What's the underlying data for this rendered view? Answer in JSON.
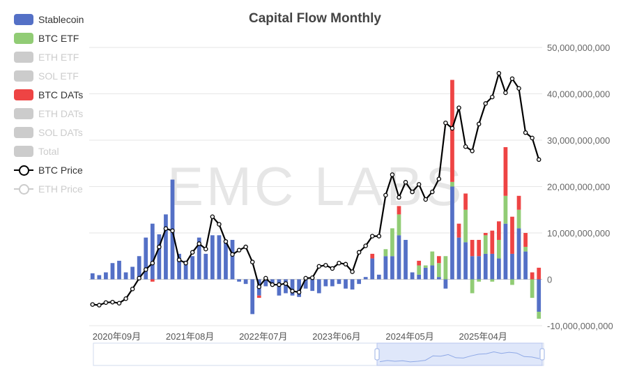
{
  "title": "Capital Flow Monthly",
  "watermark": "EMC LABS",
  "legend": [
    {
      "label": "Stablecoin",
      "color": "#5470c6",
      "kind": "bar",
      "active": true
    },
    {
      "label": "BTC ETF",
      "color": "#91cc75",
      "kind": "bar",
      "active": true
    },
    {
      "label": "ETH ETF",
      "color": "#cccccc",
      "kind": "bar",
      "active": false
    },
    {
      "label": "SOL ETF",
      "color": "#cccccc",
      "kind": "bar",
      "active": false
    },
    {
      "label": "BTC DATs",
      "color": "#ee4444",
      "kind": "bar",
      "active": true
    },
    {
      "label": "ETH DATs",
      "color": "#cccccc",
      "kind": "bar",
      "active": false
    },
    {
      "label": "SOL DATs",
      "color": "#cccccc",
      "kind": "bar",
      "active": false
    },
    {
      "label": "Total",
      "color": "#cccccc",
      "kind": "bar",
      "active": false
    },
    {
      "label": "BTC Price",
      "color": "#000000",
      "kind": "line",
      "active": true
    },
    {
      "label": "ETH Price",
      "color": "#cccccc",
      "kind": "line",
      "active": false
    }
  ],
  "chart_data": {
    "type": "bar",
    "title": "Capital Flow Monthly",
    "y_ticks": [
      "50,000,000,000",
      "40,000,000,000",
      "30,000,000,000",
      "20,000,000,000",
      "10,000,000,000",
      "0",
      "-10,000,000,000"
    ],
    "ylim": [
      -10000000000,
      50000000000
    ],
    "x_tick_labels": [
      "2020年09月",
      "2021年08月",
      "2022年07月",
      "2023年06月",
      "2024年05月",
      "2025年04月"
    ],
    "x_tick_index": [
      0,
      11,
      22,
      33,
      44,
      55
    ],
    "months": 68,
    "series": [
      {
        "name": "Stablecoin",
        "color": "#5470c6",
        "values": [
          1.3,
          0.9,
          1.5,
          3.5,
          4.0,
          1.5,
          2.7,
          5.0,
          9.0,
          12.0,
          9.7,
          14.0,
          21.5,
          5.5,
          4.0,
          5.0,
          9.0,
          5.5,
          9.5,
          9.5,
          8.5,
          8.5,
          -0.5,
          -1.0,
          -7.5,
          -3.5,
          -1.5,
          -1.0,
          -3.5,
          -3.0,
          -3.5,
          -3.8,
          -2.0,
          -2.5,
          -3.0,
          -1.5,
          -1.5,
          -1.0,
          -2.0,
          -2.2,
          -1.0,
          0.5,
          4.5,
          1.0,
          5.0,
          5.0,
          9.5,
          8.5,
          1.5,
          1.0,
          2.5,
          3.0,
          0.5,
          -2.0,
          20.0,
          9.0,
          8.0,
          5.0,
          5.0,
          5.5,
          5.5,
          4.5,
          12.0,
          5.5,
          11.0,
          6.0,
          0.0,
          -7.0
        ]
      },
      {
        "name": "BTC ETF",
        "color": "#91cc75",
        "values": [
          0,
          0,
          0,
          0,
          0,
          0,
          0,
          0,
          0,
          0,
          0,
          0,
          0,
          0,
          0,
          0,
          0,
          0,
          0,
          0,
          0,
          0,
          0,
          0,
          0,
          0,
          0,
          0,
          0,
          0,
          0,
          0,
          0,
          0,
          0,
          0,
          0,
          0,
          0,
          0,
          0,
          0,
          0,
          0,
          1.5,
          6.0,
          4.5,
          0,
          0,
          2.0,
          0.5,
          3.0,
          3.0,
          5.0,
          1.0,
          0,
          7.0,
          -3.0,
          -0.5,
          4.0,
          -0.5,
          4.0,
          6.0,
          -1.2,
          4.0,
          1.0,
          -4.0,
          -1.5
        ]
      },
      {
        "name": "BTC DATs",
        "color": "#ee4444",
        "values": [
          0,
          0,
          0,
          0,
          0,
          0,
          0,
          0,
          0,
          -0.5,
          0,
          0,
          0,
          0,
          0,
          0,
          0,
          0,
          0,
          0,
          0,
          0,
          0,
          0,
          0,
          -0.5,
          0,
          0,
          0,
          0,
          0,
          0,
          0,
          0,
          0,
          0,
          0,
          0,
          0,
          0,
          0,
          0,
          1.0,
          0,
          0,
          0,
          1.8,
          0,
          0,
          1.0,
          0,
          0,
          1.5,
          0,
          22.0,
          3.0,
          3.5,
          3.5,
          3.5,
          0.5,
          5.0,
          4.0,
          10.5,
          8.0,
          3.0,
          3.0,
          1.5,
          2.5
        ]
      },
      {
        "name": "BTC Price",
        "color": "#000000",
        "values": [
          10.8,
          10.5,
          11.7,
          11.9,
          11.4,
          13.5,
          18.0,
          23.0,
          27.0,
          30.0,
          37.5,
          46.0,
          45.0,
          31.5,
          30.0,
          35.0,
          39.0,
          36.5,
          51.5,
          48.0,
          40.0,
          34.0,
          36.0,
          37.5,
          30.5,
          19.0,
          23.0,
          20.0,
          20.0,
          20.5,
          17.0,
          16.5,
          23.0,
          23.2,
          28.5,
          29.0,
          27.5,
          30.0,
          29.5,
          26.0,
          35.0,
          38.0,
          42.5,
          42.5,
          61.5,
          71.0,
          60.5,
          67.5,
          63.0,
          66.5,
          59.5,
          63.0,
          69.0,
          95.0,
          92.5,
          102.0,
          84.0,
          82.0,
          94.5,
          104.0,
          107.0,
          118.0,
          109.0,
          115.5,
          111.0,
          90.5,
          88.0,
          78.0
        ]
      }
    ],
    "price_axis": {
      "min": 0,
      "max": 130
    }
  },
  "slider": {}
}
